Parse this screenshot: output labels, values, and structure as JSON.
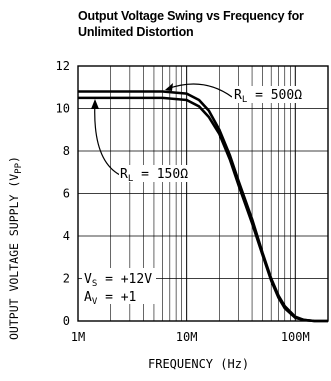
{
  "chart_data": {
    "type": "line",
    "title": "Output Voltage Swing vs Frequency for Unlimited Distortion",
    "title_lines": [
      "Output Voltage Swing vs Frequency for",
      "Unlimited Distortion"
    ],
    "xlabel": "FREQUENCY (Hz)",
    "ylabel_main": "OUTPUT VOLTAGE SUPPLY (V",
    "ylabel_sub": "PP",
    "ylabel_end": ")",
    "x_scale": "log",
    "xlim": [
      1000000,
      200000000
    ],
    "ylim": [
      0,
      12
    ],
    "x_ticks": [
      1000000,
      10000000,
      100000000
    ],
    "x_tick_labels": [
      "1M",
      "10M",
      "100M"
    ],
    "y_ticks": [
      0,
      2,
      4,
      6,
      8,
      10,
      12
    ],
    "y_tick_labels": [
      "0",
      "2",
      "4",
      "6",
      "8",
      "10",
      "12"
    ],
    "grid": true,
    "series": [
      {
        "name": "RL = 500Ω",
        "x": [
          1000000,
          3000000,
          6000000,
          10000000,
          13000000,
          16000000,
          20000000,
          25000000,
          30000000,
          40000000,
          50000000,
          60000000,
          70000000,
          80000000,
          100000000,
          120000000,
          150000000,
          200000000
        ],
        "values": [
          10.8,
          10.8,
          10.8,
          10.7,
          10.4,
          9.9,
          9.0,
          7.8,
          6.6,
          4.8,
          3.2,
          2.0,
          1.2,
          0.7,
          0.2,
          0.05,
          0.0,
          0.0
        ]
      },
      {
        "name": "RL = 150Ω",
        "x": [
          1000000,
          3000000,
          6000000,
          10000000,
          13000000,
          16000000,
          20000000,
          25000000,
          30000000,
          40000000,
          50000000,
          60000000,
          70000000,
          80000000,
          100000000,
          120000000,
          150000000,
          200000000
        ],
        "values": [
          10.5,
          10.5,
          10.5,
          10.4,
          10.1,
          9.6,
          8.8,
          7.6,
          6.4,
          4.6,
          3.1,
          1.9,
          1.1,
          0.6,
          0.15,
          0.05,
          0.0,
          0.0
        ]
      }
    ],
    "annotations": {
      "rl500_main": "R",
      "rl500_sub": "L",
      "rl500_value": " = 500Ω",
      "rl150_main": "R",
      "rl150_sub": "L",
      "rl150_value": " = 150Ω",
      "vs_main": "V",
      "vs_sub": "S",
      "vs_value": " = +12V",
      "av_main": "A",
      "av_sub": "V",
      "av_value": " = +1"
    }
  }
}
